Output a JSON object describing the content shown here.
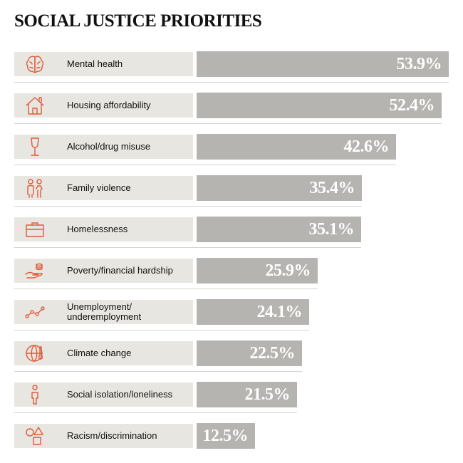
{
  "title": "SOCIAL JUSTICE PRIORITIES",
  "accent_color": "#e05a3b",
  "bar_color": "#b5b4b1",
  "chart_data": {
    "type": "bar",
    "orientation": "horizontal",
    "title": "SOCIAL JUSTICE PRIORITIES",
    "unit": "%",
    "xlim": [
      0,
      53.9
    ],
    "grid": false,
    "legend": "none",
    "categories": [
      "Mental health",
      "Housing affordability",
      "Alcohol/drug misuse",
      "Family violence",
      "Homelessness",
      "Poverty/financial hardship",
      "Unemployment/\nunderemployment",
      "Climate change",
      "Social isolation/loneliness",
      "Racism/discrimination"
    ],
    "values": [
      53.9,
      52.4,
      42.6,
      35.4,
      35.1,
      25.9,
      24.1,
      22.5,
      21.5,
      12.5
    ],
    "value_labels": [
      "53.9%",
      "52.4%",
      "42.6%",
      "35.4%",
      "35.1%",
      "25.9%",
      "24.1%",
      "22.5%",
      "21.5%",
      "12.5%"
    ],
    "icons": [
      "brain-icon",
      "house-icon",
      "wine-glass-icon",
      "family-icon",
      "suitcase-icon",
      "coins-in-hand-icon",
      "trend-line-icon",
      "globe-thermometer-icon",
      "person-icon",
      "shapes-icon"
    ]
  }
}
